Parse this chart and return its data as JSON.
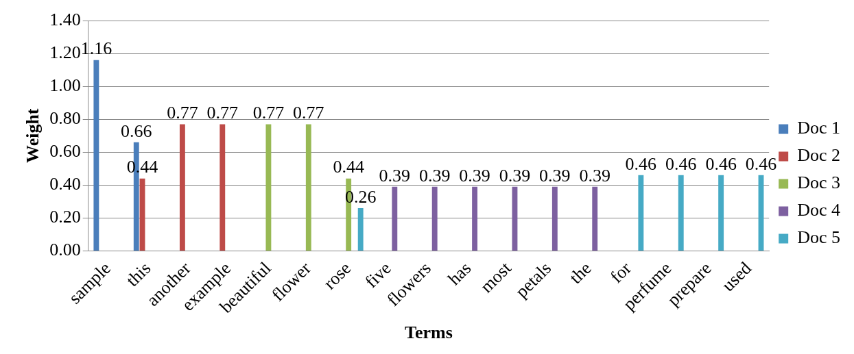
{
  "chart_data": {
    "type": "bar",
    "xlabel": "Terms",
    "ylabel": "Weight",
    "categories": [
      "sample",
      "this",
      "another",
      "example",
      "beautiful",
      "flower",
      "rose",
      "five",
      "flowers",
      "has",
      "most",
      "petals",
      "the",
      "for",
      "perfume",
      "prepare",
      "used"
    ],
    "series": [
      {
        "name": "Doc 1",
        "color": "#4a7ebb",
        "values": [
          1.16,
          0.66,
          null,
          null,
          null,
          null,
          null,
          null,
          null,
          null,
          null,
          null,
          null,
          null,
          null,
          null,
          null
        ]
      },
      {
        "name": "Doc 2",
        "color": "#be4b48",
        "values": [
          null,
          0.44,
          0.77,
          0.77,
          null,
          null,
          null,
          null,
          null,
          null,
          null,
          null,
          null,
          null,
          null,
          null,
          null
        ]
      },
      {
        "name": "Doc 3",
        "color": "#98b954",
        "values": [
          null,
          null,
          null,
          null,
          0.77,
          0.77,
          0.44,
          null,
          null,
          null,
          null,
          null,
          null,
          null,
          null,
          null,
          null
        ]
      },
      {
        "name": "Doc 4",
        "color": "#7d60a0",
        "values": [
          null,
          null,
          null,
          null,
          null,
          null,
          null,
          0.39,
          0.39,
          0.39,
          0.39,
          0.39,
          0.39,
          null,
          null,
          null,
          null
        ]
      },
      {
        "name": "Doc 5",
        "color": "#46aac5",
        "values": [
          null,
          null,
          null,
          null,
          null,
          null,
          0.26,
          null,
          null,
          null,
          null,
          null,
          null,
          0.46,
          0.46,
          0.46,
          0.46
        ]
      }
    ],
    "ylim": [
      0,
      1.4
    ],
    "yticks": [
      {
        "value": 0,
        "label": "0.00"
      },
      {
        "value": 0.2,
        "label": "0.20"
      },
      {
        "value": 0.4,
        "label": "0.40"
      },
      {
        "value": 0.6,
        "label": "0.60"
      },
      {
        "value": 0.8,
        "label": "0.80"
      },
      {
        "value": 1,
        "label": "1.00"
      },
      {
        "value": 1.2,
        "label": "1.20"
      },
      {
        "value": 1.4,
        "label": "1.40"
      }
    ],
    "grid": "y",
    "legend": "right",
    "data_labels": true
  }
}
